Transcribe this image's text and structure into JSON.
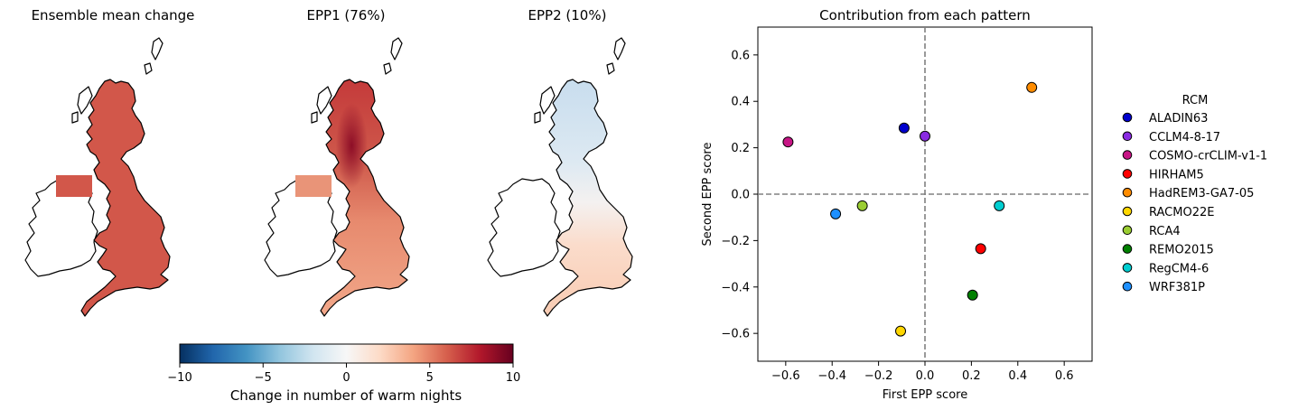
{
  "maps": [
    {
      "title": "Ensemble mean change",
      "style": "mean"
    },
    {
      "title": "EPP1 (76%)",
      "style": "epp1"
    },
    {
      "title": "EPP2 (10%)",
      "style": "epp2"
    }
  ],
  "colorbar": {
    "label": "Change in number of warm nights",
    "min": -10,
    "max": 10,
    "ticks": [
      -10,
      -5,
      0,
      5,
      10
    ],
    "tick_labels": [
      "−10",
      "−5",
      "0",
      "5",
      "10"
    ],
    "colormap": "RdBu_r"
  },
  "chart_data": {
    "type": "scatter",
    "title": "Contribution from each pattern",
    "xlabel": "First EPP score",
    "ylabel": "Second EPP score",
    "xlim": [
      -0.72,
      0.72
    ],
    "ylim": [
      -0.72,
      0.72
    ],
    "xticks": [
      -0.6,
      -0.4,
      -0.2,
      0.0,
      0.2,
      0.4,
      0.6
    ],
    "yticks": [
      -0.6,
      -0.4,
      -0.2,
      0.0,
      0.2,
      0.4,
      0.6
    ],
    "xtick_labels": [
      "−0.6",
      "−0.4",
      "−0.2",
      "0.0",
      "0.2",
      "0.4",
      "0.6"
    ],
    "ytick_labels": [
      "−0.6",
      "−0.4",
      "−0.2",
      "0.0",
      "0.2",
      "0.4",
      "0.6"
    ],
    "reference_lines": {
      "x": 0,
      "y": 0,
      "style": "dashed",
      "color": "#808080"
    },
    "legend_title": "RCM",
    "legend_position": "right",
    "series": [
      {
        "name": "ALADIN63",
        "color": "#0000cd",
        "x": -0.09,
        "y": 0.285
      },
      {
        "name": "CCLM4-8-17",
        "color": "#8a2be2",
        "x": 0.0,
        "y": 0.25
      },
      {
        "name": "COSMO-crCLIM-v1-1",
        "color": "#c71585",
        "x": -0.59,
        "y": 0.225
      },
      {
        "name": "HIRHAM5",
        "color": "#ff0000",
        "x": 0.24,
        "y": -0.235
      },
      {
        "name": "HadREM3-GA7-05",
        "color": "#ff8c00",
        "x": 0.46,
        "y": 0.46
      },
      {
        "name": "RACMO22E",
        "color": "#ffd700",
        "x": -0.105,
        "y": -0.59
      },
      {
        "name": "RCA4",
        "color": "#9acd32",
        "x": -0.27,
        "y": -0.05
      },
      {
        "name": "REMO2015",
        "color": "#008000",
        "x": 0.205,
        "y": -0.435
      },
      {
        "name": "RegCM4-6",
        "color": "#00ced1",
        "x": 0.32,
        "y": -0.05
      },
      {
        "name": "WRF381P",
        "color": "#1e90ff",
        "x": -0.385,
        "y": -0.085
      }
    ]
  }
}
